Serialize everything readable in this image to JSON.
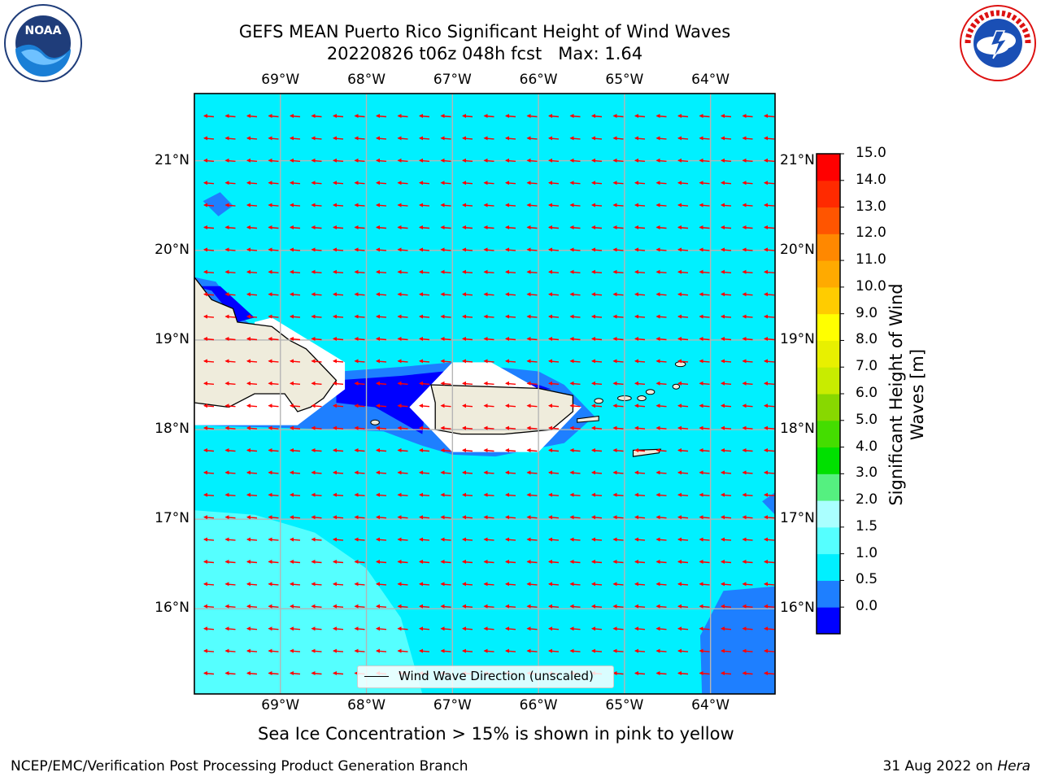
{
  "title": {
    "line1": "GEFS MEAN Puerto Rico Significant Height of Wind Waves",
    "line2": "20220826 t06z 048h fcst   Max: 1.64"
  },
  "logos": {
    "left": {
      "name": "noaa-logo",
      "text": "NOAA"
    },
    "right": {
      "name": "national-weather-service-logo",
      "text": "NATIONAL WEATHER SERVICE"
    }
  },
  "map": {
    "lon_labels": [
      "69°W",
      "68°W",
      "67°W",
      "66°W",
      "65°W",
      "64°W"
    ],
    "lat_labels": [
      "21°N",
      "20°N",
      "19°N",
      "18°N",
      "17°N",
      "16°N"
    ],
    "lon_values": [
      -69,
      -68,
      -67,
      -66,
      -65,
      -64
    ],
    "lat_values": [
      21,
      20,
      19,
      18,
      17,
      16
    ],
    "lon_range": [
      -70.0,
      -63.25
    ],
    "lat_range": [
      15.05,
      21.75
    ],
    "background_fill": "#00f0ff",
    "land_color": "#efecdc",
    "gridlines": true,
    "arrow_color": "#ff0000",
    "arrow_direction": "toward west (easterly flow)"
  },
  "legend": {
    "label": "Wind Wave Direction (unscaled)",
    "placement": "bottom-center"
  },
  "colorbar": {
    "title": "Significant Height of Wind Waves [m]",
    "ticks": [
      "15.0",
      "14.0",
      "13.0",
      "12.0",
      "11.0",
      "10.0",
      "9.0",
      "8.0",
      "7.0",
      "6.0",
      "5.0",
      "4.0",
      "3.0",
      "2.0",
      "1.5",
      "1.0",
      "0.5",
      "0.0"
    ],
    "colors_bottom_to_top": [
      "#0000ff",
      "#1e7fff",
      "#00f0ff",
      "#55ffff",
      "#aaffff",
      "#55f080",
      "#00e000",
      "#44dd00",
      "#88d800",
      "#c8ec00",
      "#e8f000",
      "#ffff00",
      "#ffcc00",
      "#ffaa00",
      "#ff8800",
      "#ff5500",
      "#ff2a00",
      "#ff0000"
    ]
  },
  "chart_data": {
    "type": "heatmap",
    "title": "GEFS MEAN Puerto Rico Significant Height of Wind Waves",
    "subtitle": "20220826 t06z 048h fcst   Max: 1.64",
    "variable": "Significant Height of Wind Waves [m]",
    "max": 1.64,
    "colorbar_levels": [
      0.0,
      0.5,
      1.0,
      1.5,
      2.0,
      3.0,
      4.0,
      5.0,
      6.0,
      7.0,
      8.0,
      9.0,
      10.0,
      11.0,
      12.0,
      13.0,
      14.0,
      15.0
    ],
    "xlabel": "",
    "ylabel": "",
    "xlim": [
      -70.0,
      -63.25
    ],
    "ylim": [
      15.05,
      21.75
    ]
  },
  "notes": {
    "sea_ice": "Sea Ice Concentration > 15% is shown in pink to yellow"
  },
  "footer": {
    "left": "NCEP/EMC/Verification Post Processing Product Generation Branch",
    "right_prefix": "31 Aug 2022 on ",
    "right_host": "Hera"
  }
}
